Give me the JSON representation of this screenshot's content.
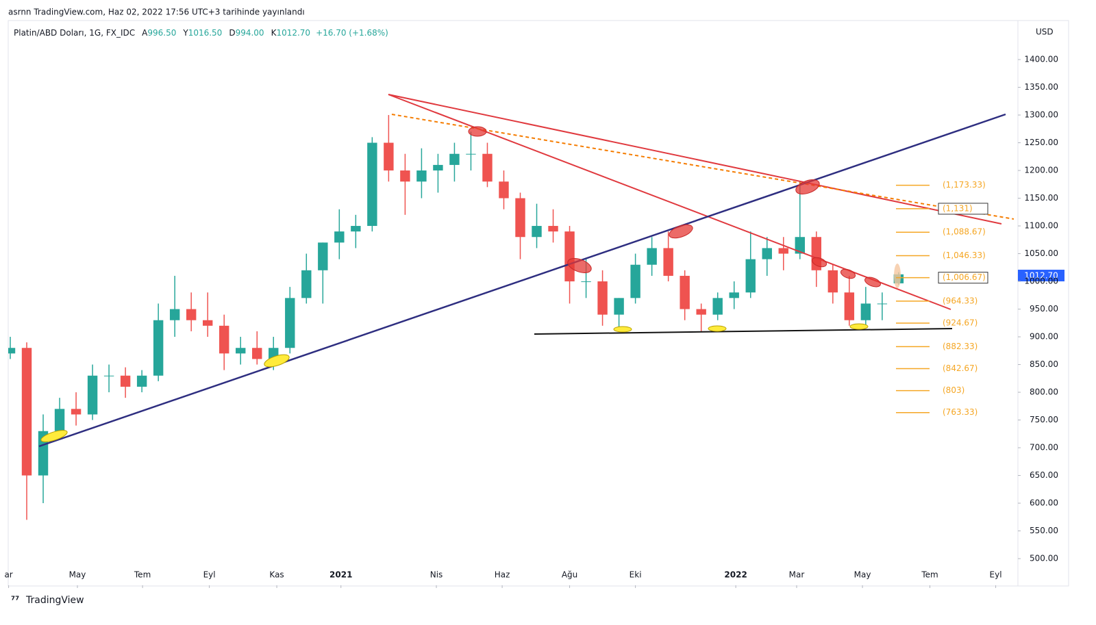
{
  "header": "asrnn TradingView.com, Haz 02, 2022 17:56 UTC+3 tarihinde yayınlandı",
  "footer": "TradingView",
  "chart_data": {
    "type": "candlestick",
    "symbol": "Platin/ABD Doları, 1G, FX_IDC",
    "legend": [
      {
        "label": "A",
        "value": "996.50"
      },
      {
        "label": "Y",
        "value": "1016.50"
      },
      {
        "label": "D",
        "value": "994.00"
      },
      {
        "label": "K",
        "value": "1012.70"
      }
    ],
    "change": "+16.70 (+1.68%)",
    "currency": "USD",
    "last_price_label": "1012.70",
    "up_color": "#26a69a",
    "down_color": "#ef5350",
    "x": [
      0,
      1,
      2,
      3,
      4,
      5,
      6,
      7,
      8,
      9,
      10,
      11,
      12,
      13,
      14,
      15,
      16,
      17,
      18,
      19,
      20,
      21,
      22,
      23,
      24,
      25,
      26,
      27,
      28,
      29,
      30,
      31,
      32,
      33,
      34,
      35,
      36,
      37,
      38,
      39,
      40,
      41,
      42,
      43,
      44,
      45,
      46,
      47,
      48,
      49,
      50,
      51,
      52,
      53,
      54
    ],
    "open": [
      870,
      880,
      650,
      730,
      770,
      760,
      830,
      830,
      810,
      830,
      930,
      950,
      930,
      920,
      870,
      880,
      860,
      880,
      970,
      1020,
      1070,
      1090,
      1100,
      1250,
      1200,
      1180,
      1200,
      1210,
      1230,
      1230,
      1180,
      1150,
      1080,
      1100,
      1090,
      1000,
      1000,
      940,
      970,
      1030,
      1060,
      1010,
      950,
      940,
      970,
      980,
      1040,
      1060,
      1050,
      1080,
      1020,
      980,
      930,
      960,
      996.5
    ],
    "high": [
      900,
      890,
      760,
      790,
      800,
      850,
      850,
      845,
      840,
      960,
      1010,
      980,
      980,
      940,
      900,
      910,
      900,
      990,
      1050,
      1070,
      1130,
      1120,
      1260,
      1300,
      1230,
      1240,
      1230,
      1250,
      1270,
      1250,
      1200,
      1160,
      1140,
      1130,
      1100,
      1040,
      1020,
      970,
      1050,
      1080,
      1090,
      1020,
      960,
      980,
      1000,
      1090,
      1080,
      1080,
      1180,
      1090,
      1030,
      1010,
      990,
      980,
      1016.5
    ],
    "low": [
      860,
      570,
      600,
      720,
      740,
      750,
      800,
      790,
      800,
      820,
      900,
      910,
      900,
      840,
      850,
      850,
      840,
      870,
      960,
      960,
      1040,
      1060,
      1090,
      1180,
      1120,
      1150,
      1160,
      1180,
      1200,
      1170,
      1130,
      1040,
      1060,
      1070,
      960,
      970,
      920,
      910,
      960,
      1010,
      1000,
      930,
      910,
      930,
      950,
      970,
      1010,
      1020,
      1040,
      990,
      960,
      920,
      920,
      930,
      994
    ],
    "close": [
      880,
      650,
      730,
      770,
      760,
      830,
      830,
      810,
      830,
      930,
      950,
      930,
      920,
      870,
      880,
      860,
      880,
      970,
      1020,
      1070,
      1090,
      1100,
      1250,
      1200,
      1180,
      1200,
      1210,
      1230,
      1230,
      1180,
      1150,
      1080,
      1100,
      1090,
      1000,
      1000,
      940,
      970,
      1030,
      1060,
      1010,
      950,
      940,
      970,
      980,
      1040,
      1060,
      1050,
      1080,
      1020,
      980,
      930,
      960,
      960,
      1012.7
    ],
    "xlim": [
      -0.125,
      61.25
    ],
    "xticks": [
      {
        "value": -0.1,
        "label": "ar"
      },
      {
        "value": 4.08,
        "label": "May"
      },
      {
        "value": 8.04,
        "label": "Tem"
      },
      {
        "value": 12.1,
        "label": "Eyl"
      },
      {
        "value": 16.2,
        "label": "Kas"
      },
      {
        "value": 20.1,
        "label": "2021"
      },
      {
        "value": 25.9,
        "label": "Nis"
      },
      {
        "value": 29.9,
        "label": "Haz"
      },
      {
        "value": 34.0,
        "label": "Ağu"
      },
      {
        "value": 38.0,
        "label": "Eki"
      },
      {
        "value": 44.1,
        "label": "2022"
      },
      {
        "value": 47.8,
        "label": "Mar"
      },
      {
        "value": 51.8,
        "label": "May"
      },
      {
        "value": 55.9,
        "label": "Tem"
      },
      {
        "value": 59.9,
        "label": "Eyl"
      }
    ],
    "ylim": [
      451.9,
      1470.4
    ],
    "yticks": [
      {
        "value": 1400,
        "label": "1400.00"
      },
      {
        "value": 1350,
        "label": "1350.00"
      },
      {
        "value": 1300,
        "label": "1300.00"
      },
      {
        "value": 1250,
        "label": "1250.00"
      },
      {
        "value": 1200,
        "label": "1200.00"
      },
      {
        "value": 1150,
        "label": "1150.00"
      },
      {
        "value": 1100,
        "label": "1100.00"
      },
      {
        "value": 1050,
        "label": "1050.00"
      },
      {
        "value": 1000,
        "label": "1000.00"
      },
      {
        "value": 950,
        "label": "950.00"
      },
      {
        "value": 900,
        "label": "900.00"
      },
      {
        "value": 850,
        "label": "850.00"
      },
      {
        "value": 800,
        "label": "800.00"
      },
      {
        "value": 750,
        "label": "750.00"
      },
      {
        "value": 700,
        "label": "700.00"
      },
      {
        "value": 650,
        "label": "650.00"
      },
      {
        "value": 600,
        "label": "600.00"
      },
      {
        "value": 550,
        "label": "550.00"
      },
      {
        "value": 500,
        "label": "500.00"
      }
    ],
    "levels": [
      {
        "value": 1173.33,
        "label": "(1,173.33)"
      },
      {
        "value": 1131,
        "label": "(1,131)",
        "boxed": true
      },
      {
        "value": 1088.67,
        "label": "(1,088.67)"
      },
      {
        "value": 1046.33,
        "label": "(1,046.33)"
      },
      {
        "value": 1006.67,
        "label": "(1,006.67)",
        "boxed": true
      },
      {
        "value": 964.33,
        "label": "(964.33)"
      },
      {
        "value": 924.67,
        "label": "(924.67)"
      },
      {
        "value": 882.33,
        "label": "(882.33)"
      },
      {
        "value": 842.67,
        "label": "(842.67)"
      },
      {
        "value": 803,
        "label": "(803)"
      },
      {
        "value": 763.33,
        "label": "(763.33)"
      }
    ],
    "level_color": "#f5a623",
    "grid": false
  }
}
